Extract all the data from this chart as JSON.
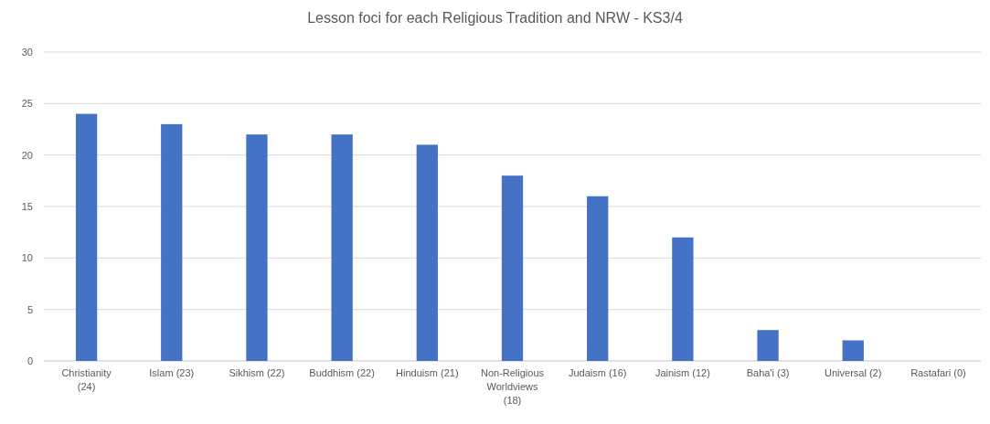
{
  "chart_data": {
    "type": "bar",
    "title": "Lesson foci for each Religious Tradition and NRW - KS3/4",
    "categories": [
      "Christianity (24)",
      "Islam (23)",
      "Sikhism (22)",
      "Buddhism (22)",
      "Hinduism (21)",
      "Non-Religious Worldviews (18)",
      "Judaism (16)",
      "Jainism (12)",
      "Baha'i (3)",
      "Universal (2)",
      "Rastafari (0)"
    ],
    "values": [
      24,
      23,
      22,
      22,
      21,
      18,
      16,
      12,
      3,
      2,
      0
    ],
    "color": "#4472c4",
    "ylim": [
      0,
      30
    ],
    "yticks": [
      0,
      5,
      10,
      15,
      20,
      25,
      30
    ],
    "grid": "y"
  }
}
